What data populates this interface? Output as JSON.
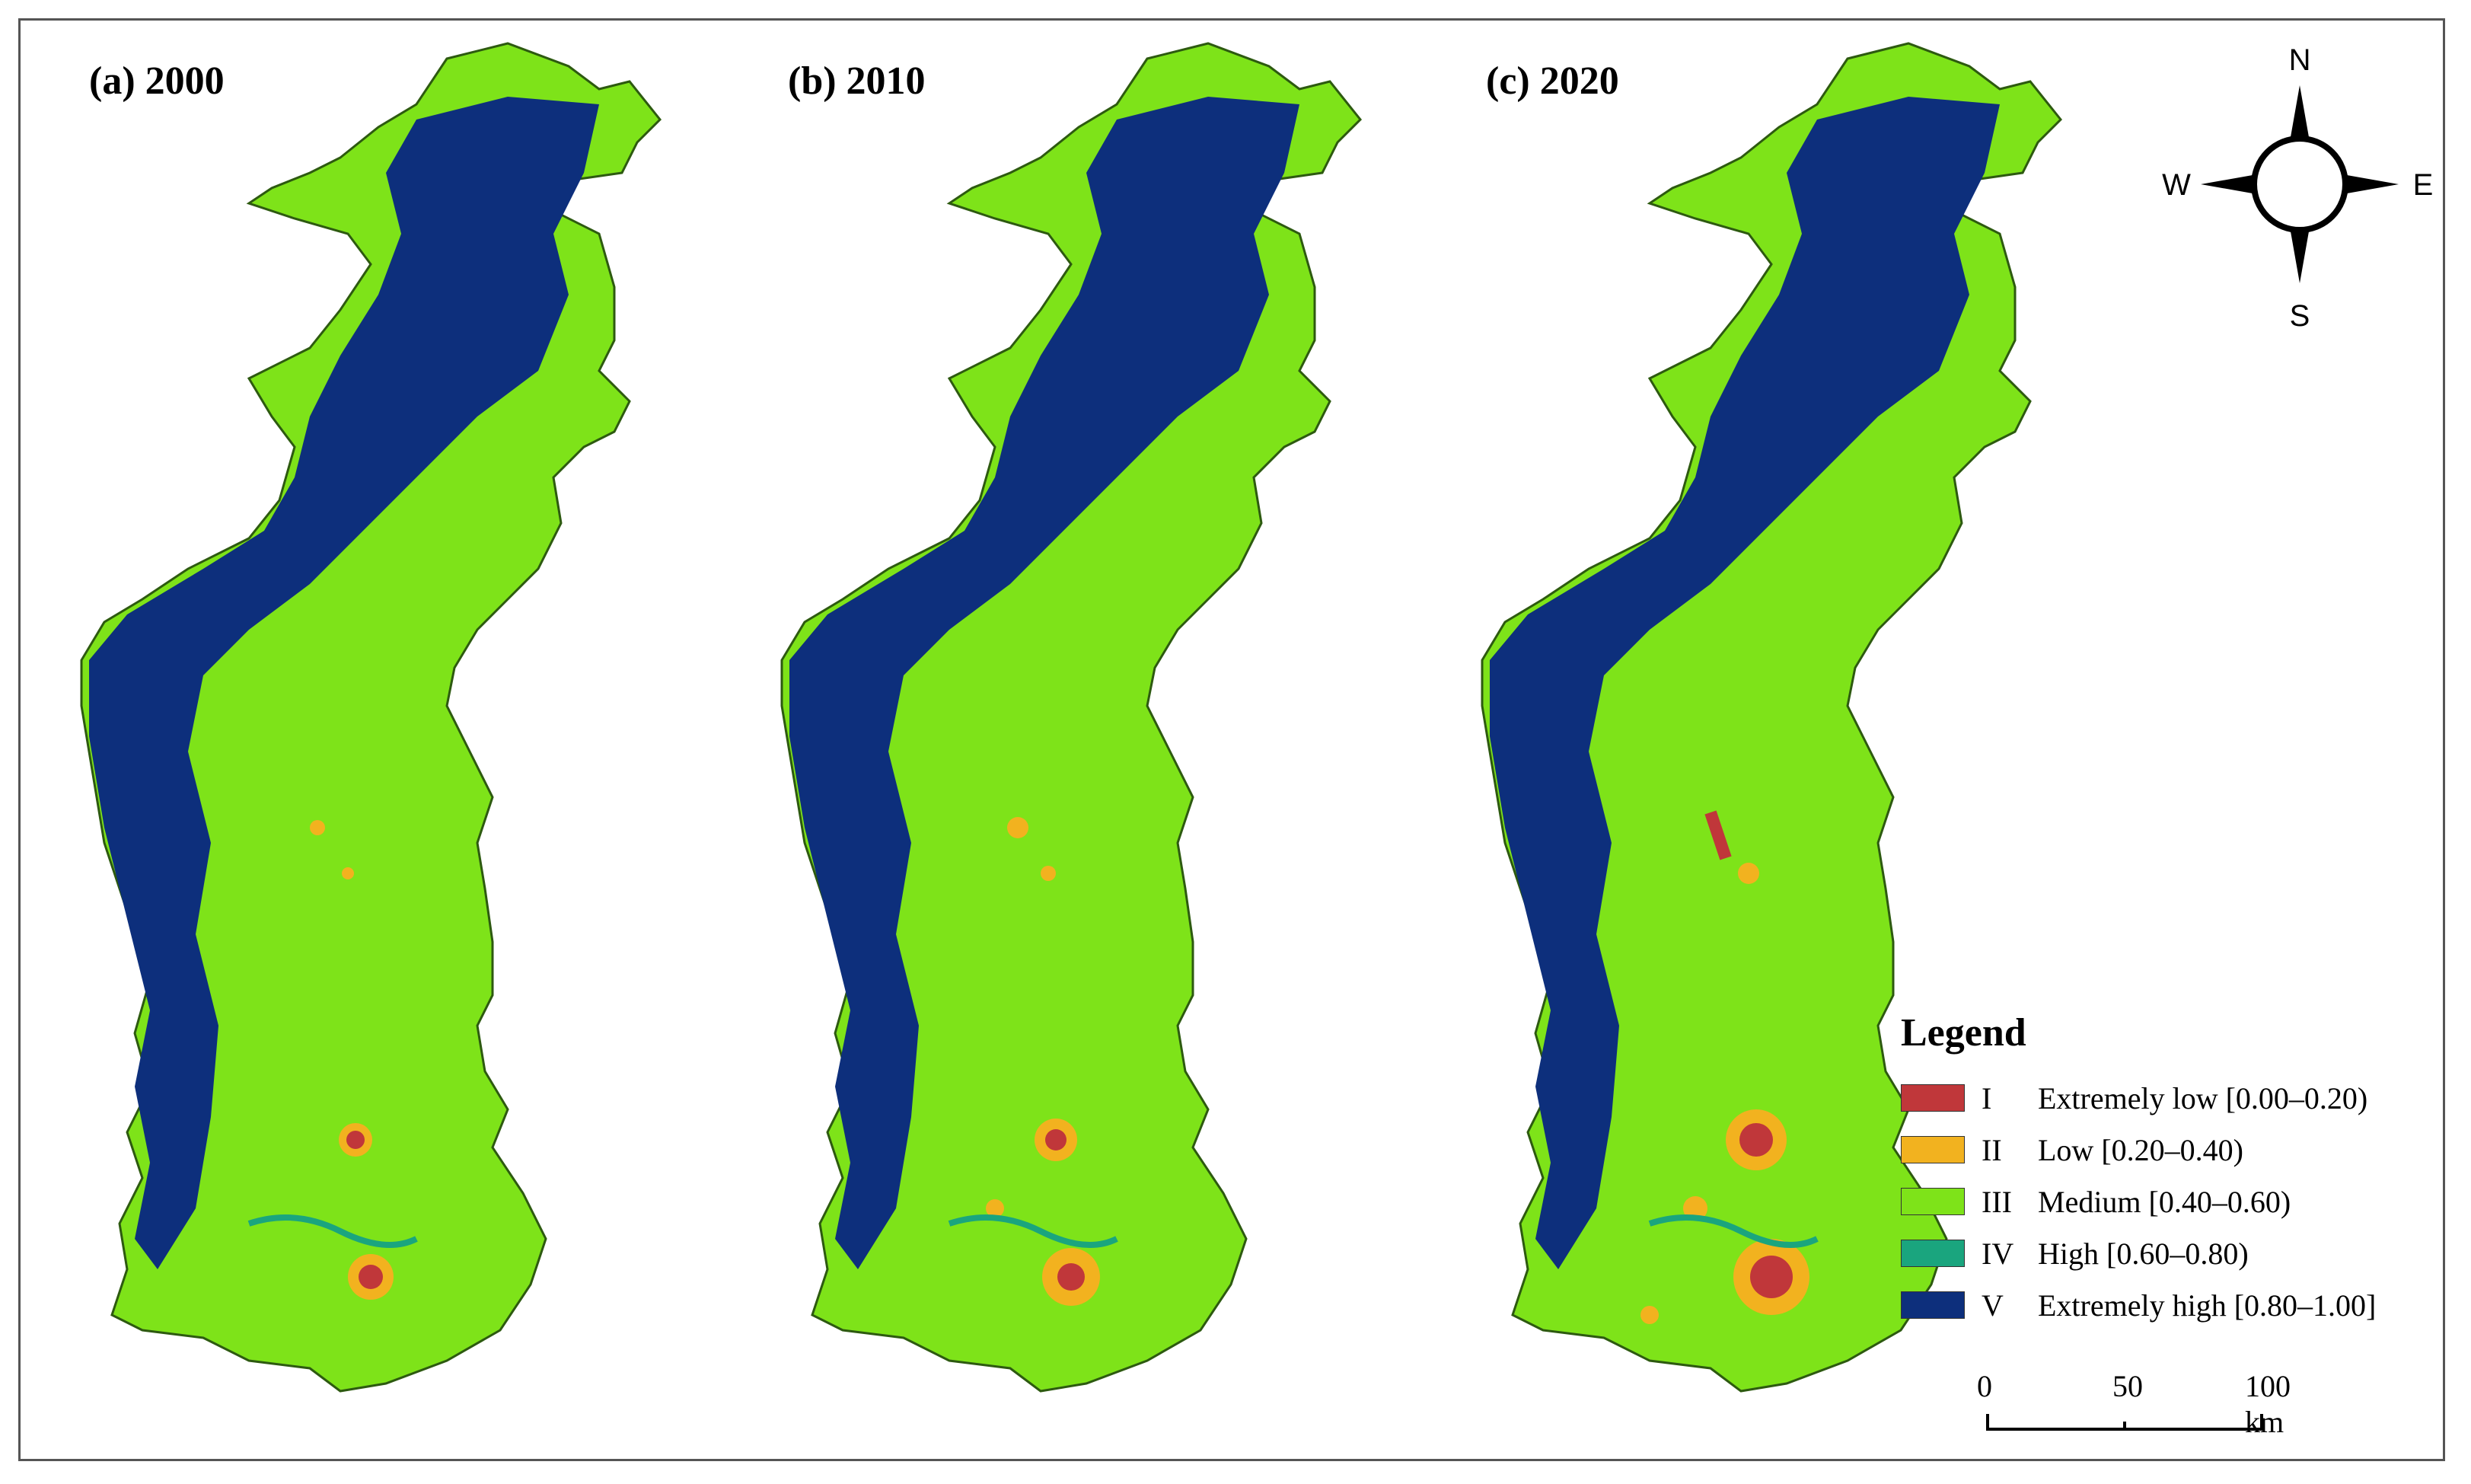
{
  "panels": [
    {
      "label": "(a) 2000"
    },
    {
      "label": "(b) 2010"
    },
    {
      "label": "(c) 2020"
    }
  ],
  "compass": {
    "n": "N",
    "s": "S",
    "e": "E",
    "w": "W"
  },
  "legend": {
    "title": "Legend",
    "items": [
      {
        "class": "I",
        "text": "Extremely low [0.00–0.20)",
        "color": "#c0373a"
      },
      {
        "class": "II",
        "text": "Low [0.20–0.40)",
        "color": "#f2b21f"
      },
      {
        "class": "III",
        "text": "Medium [0.40–0.60)",
        "color": "#7ee319"
      },
      {
        "class": "IV",
        "text": "High [0.60–0.80)",
        "color": "#1aa57e"
      },
      {
        "class": "V",
        "text": "Extremely high [0.80–1.00]",
        "color": "#0d2f7c"
      }
    ]
  },
  "scalebar": {
    "ticks": [
      "0",
      "50",
      "100 km"
    ]
  }
}
